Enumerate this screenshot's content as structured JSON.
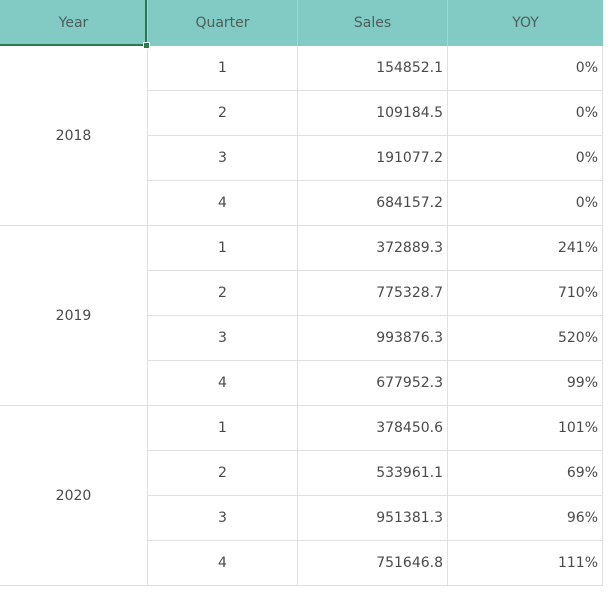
{
  "headers": [
    "Year",
    "Quarter",
    "Sales",
    "YOY"
  ],
  "years": [
    {
      "year": "2018",
      "rows": [
        {
          "quarter": "1",
          "sales": "154852.1",
          "yoy": "0%"
        },
        {
          "quarter": "2",
          "sales": "109184.5",
          "yoy": "0%"
        },
        {
          "quarter": "3",
          "sales": "191077.2",
          "yoy": "0%"
        },
        {
          "quarter": "4",
          "sales": "684157.2",
          "yoy": "0%"
        }
      ]
    },
    {
      "year": "2019",
      "rows": [
        {
          "quarter": "1",
          "sales": "372889.3",
          "yoy": "241%"
        },
        {
          "quarter": "2",
          "sales": "775328.7",
          "yoy": "710%"
        },
        {
          "quarter": "3",
          "sales": "993876.3",
          "yoy": "520%"
        },
        {
          "quarter": "4",
          "sales": "677952.3",
          "yoy": "99%"
        }
      ]
    },
    {
      "year": "2020",
      "rows": [
        {
          "quarter": "1",
          "sales": "378450.6",
          "yoy": "101%"
        },
        {
          "quarter": "2",
          "sales": "533961.1",
          "yoy": "69%"
        },
        {
          "quarter": "3",
          "sales": "951381.3",
          "yoy": "96%"
        },
        {
          "quarter": "4",
          "sales": "751646.8",
          "yoy": "111%"
        }
      ]
    }
  ],
  "colors": {
    "header_bg": "#82cbc4",
    "selection": "#2a7a4a",
    "grid_line": "#e0e0e0"
  }
}
